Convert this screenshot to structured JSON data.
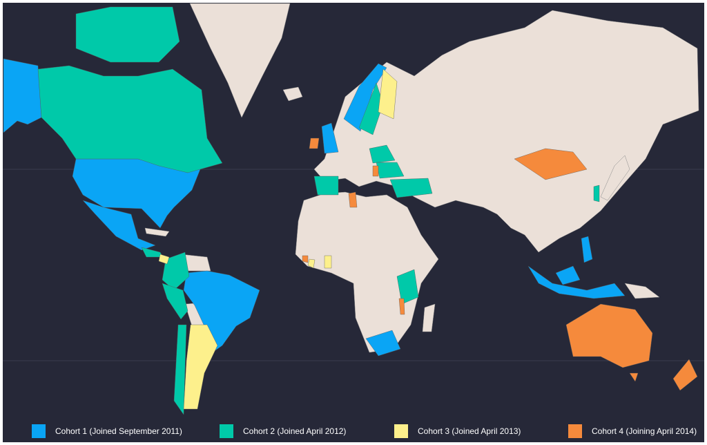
{
  "legend": {
    "items": [
      {
        "label": "Cohort 1 (Joined September 2011)",
        "color": "#0aa5f5"
      },
      {
        "label": "Cohort 2 (Joined April 2012)",
        "color": "#00c9a9"
      },
      {
        "label": "Cohort 3 (Joined April 2013)",
        "color": "#fdf08c"
      },
      {
        "label": "Cohort 4 (Joining April 2014)",
        "color": "#f58a3c"
      }
    ]
  }
}
